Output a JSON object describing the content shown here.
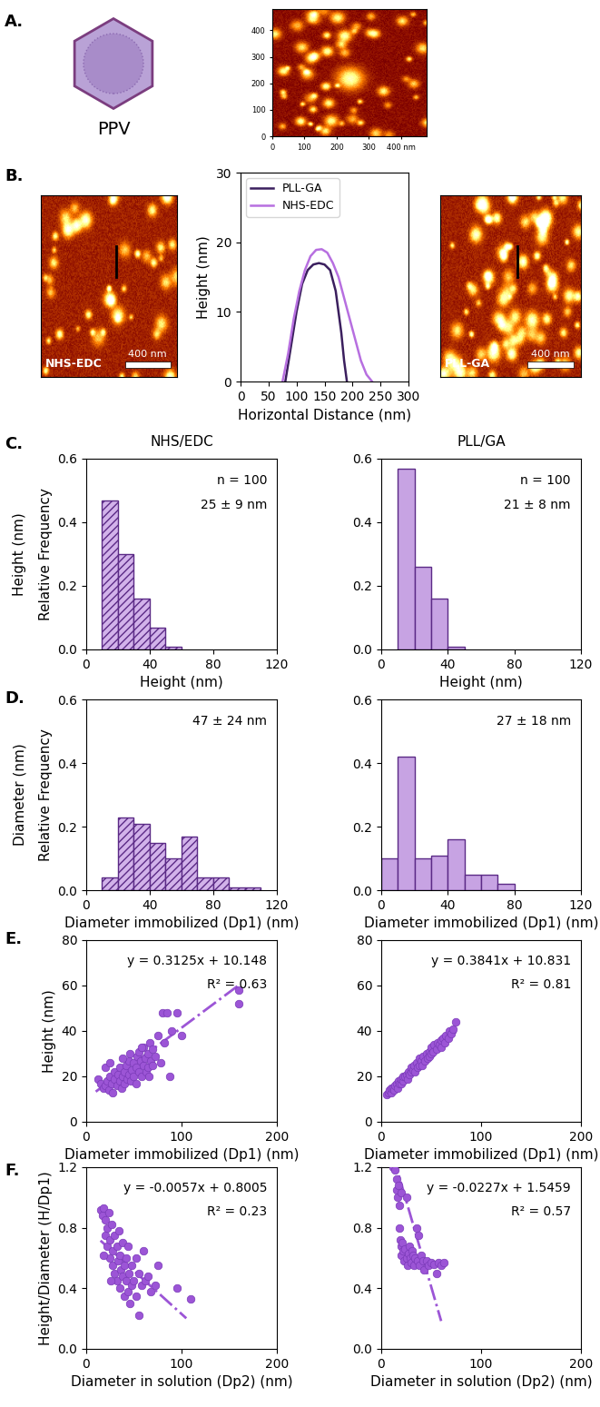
{
  "panel_labels": [
    "A.",
    "B.",
    "C.",
    "D.",
    "E.",
    "F."
  ],
  "diagram": {
    "particle_label": "PPV",
    "afm_3d": {
      "xlim": [
        0,
        480
      ],
      "ylim": [
        0,
        480
      ],
      "xticks": [
        0,
        100,
        200,
        300,
        {
          "value": 400,
          "label": "400 nm"
        }
      ],
      "yticks": [
        0,
        100,
        200,
        300,
        400
      ]
    },
    "afm_images": [
      {
        "label": "NHS-EDC",
        "scale_bar": "400 nm"
      },
      {
        "label": "PLL-GA",
        "scale_bar": "400 nm"
      }
    ]
  },
  "row_labels": [
    "Height (nm)",
    "Diameter (nm)"
  ],
  "chart_data": [
    {
      "type": "line",
      "xlabel": "Horizontal Distance (nm)",
      "ylabel": "Height (nm)",
      "xlim": [
        0,
        300
      ],
      "xticks": [
        0,
        50,
        100,
        150,
        200,
        250,
        300
      ],
      "ylim": [
        0,
        30
      ],
      "yticks": [
        0,
        10,
        20,
        30
      ],
      "legend": "upper left",
      "series": [
        {
          "name": "PLL-GA",
          "color": "#3b1f5e",
          "x": [
            80,
            90,
            100,
            110,
            120,
            130,
            140,
            150,
            160,
            170,
            180,
            185,
            190
          ],
          "values": [
            0,
            5,
            10,
            14,
            16,
            16.8,
            17,
            16.8,
            16,
            13,
            7,
            3,
            0
          ]
        },
        {
          "name": "NHS-EDC",
          "color": "#b76fe0",
          "x": [
            75,
            85,
            95,
            105,
            115,
            125,
            135,
            145,
            155,
            165,
            175,
            185,
            195,
            205,
            215,
            225,
            235
          ],
          "values": [
            0,
            4,
            9,
            13,
            16,
            18,
            18.9,
            19,
            18.5,
            17,
            15,
            12,
            9,
            6,
            3,
            1,
            0
          ]
        }
      ]
    },
    {
      "type": "histogram",
      "title": "NHS/EDC",
      "xlabel": "Height (nm)",
      "ylabel": "Relative Frequency",
      "bins": [
        10,
        20,
        30,
        40,
        50,
        60
      ],
      "counts": [
        0.47,
        0.3,
        0.16,
        0.07,
        0.01
      ],
      "color": "#d2b2ea",
      "annotations": [
        "n = 100",
        "25 ± 9 nm"
      ],
      "xlim": [
        0,
        120
      ],
      "xticks": [
        0,
        40,
        80,
        120
      ],
      "ylim": [
        0,
        0.6
      ],
      "yticks": [
        {
          "value": 0,
          "label": "0.0"
        },
        0.2,
        0.4,
        0.6
      ]
    },
    {
      "type": "histogram",
      "title": "PLL/GA",
      "xlabel": "Height (nm)",
      "bins": [
        10,
        20,
        30,
        40,
        50
      ],
      "counts": [
        0.57,
        0.26,
        0.16,
        0.01
      ],
      "color": "#c7a3e3",
      "annotations": [
        "n = 100",
        "21 ± 8 nm"
      ],
      "xlim": [
        0,
        120
      ],
      "xticks": [
        0,
        40,
        80,
        120
      ],
      "ylim": [
        0,
        0.6
      ],
      "yticks": [
        {
          "value": 0,
          "label": "0.0"
        },
        0.2,
        0.4,
        0.6
      ]
    },
    {
      "type": "histogram",
      "xlabel": "Diameter immobilized (Dp1) (nm)",
      "ylabel": "Relative Frequency",
      "bins": [
        10,
        20,
        30,
        40,
        50,
        60,
        70,
        80,
        90,
        100,
        110
      ],
      "counts": [
        0.04,
        0.23,
        0.21,
        0.15,
        0.1,
        0.17,
        0.04,
        0.04,
        0.01,
        0.01
      ],
      "color": "#d2b2ea",
      "annotations": [
        "47 ± 24 nm"
      ],
      "xlim": [
        0,
        120
      ],
      "xticks": [
        0,
        40,
        80,
        120
      ],
      "ylim": [
        0,
        0.6
      ],
      "yticks": [
        {
          "value": 0,
          "label": "0.0"
        },
        0.2,
        0.4,
        0.6
      ]
    },
    {
      "type": "histogram",
      "xlabel": "Diameter immobilized (Dp1) (nm)",
      "bins": [
        0,
        10,
        20,
        30,
        40,
        50,
        60,
        70,
        80
      ],
      "counts": [
        0.1,
        0.42,
        0.1,
        0.11,
        0.16,
        0.05,
        0.05,
        0.02
      ],
      "color": "#c7a3e3",
      "annotations": [
        "27 ± 18 nm"
      ],
      "xlim": [
        0,
        120
      ],
      "xticks": [
        0,
        40,
        80,
        120
      ],
      "ylim": [
        0,
        0.6
      ],
      "yticks": [
        {
          "value": 0,
          "label": "0.0"
        },
        0.2,
        0.4,
        0.6
      ]
    },
    {
      "type": "scatter",
      "xlabel": "Diameter immobilized (Dp1) (nm)",
      "ylabel": "Height (nm)",
      "color": "#9c55d6",
      "line_style": "dashdot",
      "annotations": [
        "y = 0.3125x + 10.148",
        "R² = 0.63"
      ],
      "fit": {
        "slope": 0.3125,
        "intercept": 10.148,
        "x": [
          10,
          160
        ]
      },
      "x": [
        12,
        15,
        18,
        20,
        22,
        24,
        25,
        27,
        28,
        30,
        30,
        32,
        33,
        35,
        35,
        37,
        38,
        40,
        40,
        42,
        43,
        45,
        45,
        47,
        48,
        50,
        50,
        52,
        53,
        55,
        55,
        57,
        58,
        60,
        60,
        62,
        63,
        65,
        65,
        67,
        68,
        70,
        70,
        72,
        75,
        78,
        80,
        82,
        85,
        88,
        90,
        95,
        100,
        160,
        160,
        20,
        25,
        38,
        46,
        58,
        66,
        52
      ],
      "values": [
        19,
        17,
        15,
        16,
        18,
        14,
        20,
        17,
        13,
        19,
        22,
        16,
        21,
        18,
        24,
        15,
        20,
        22,
        17,
        25,
        19,
        21,
        27,
        18,
        23,
        20,
        26,
        24,
        29,
        22,
        31,
        27,
        20,
        25,
        33,
        28,
        22,
        30,
        24,
        35,
        27,
        32,
        25,
        29,
        38,
        26,
        48,
        35,
        48,
        20,
        40,
        48,
        38,
        52,
        58,
        24,
        26,
        28,
        30,
        33,
        20,
        17
      ],
      "xlim": [
        0,
        200
      ],
      "xticks": [
        0,
        100,
        200
      ],
      "ylim": [
        0,
        80
      ],
      "yticks": [
        0,
        20,
        40,
        60,
        80
      ]
    },
    {
      "type": "scatter",
      "xlabel": "Diameter immobilized (Dp1) (nm)",
      "color": "#9c55d6",
      "line_style": "dashdot",
      "annotations": [
        "y = 0.3841x + 10.831",
        "R² = 0.81"
      ],
      "fit": {
        "slope": 0.3841,
        "intercept": 10.831,
        "x": [
          5,
          75
        ]
      },
      "x": [
        5,
        7,
        8,
        10,
        10,
        12,
        13,
        14,
        15,
        16,
        17,
        18,
        20,
        20,
        22,
        22,
        24,
        25,
        26,
        27,
        28,
        30,
        30,
        32,
        33,
        34,
        35,
        36,
        38,
        38,
        40,
        41,
        42,
        44,
        45,
        46,
        48,
        48,
        50,
        50,
        52,
        53,
        55,
        56,
        58,
        60,
        60,
        62,
        64,
        65,
        67,
        68,
        70,
        72,
        75
      ],
      "values": [
        12,
        13,
        14,
        13,
        15,
        15,
        14,
        16,
        17,
        15,
        18,
        17,
        17,
        19,
        18,
        20,
        20,
        21,
        19,
        22,
        21,
        22,
        24,
        23,
        25,
        22,
        26,
        24,
        25,
        28,
        27,
        25,
        29,
        27,
        30,
        28,
        31,
        29,
        30,
        33,
        31,
        34,
        32,
        35,
        34,
        36,
        33,
        37,
        35,
        38,
        37,
        40,
        39,
        41,
        44
      ],
      "xlim": [
        0,
        200
      ],
      "xticks": [
        0,
        100,
        200
      ],
      "ylim": [
        0,
        80
      ],
      "yticks": [
        0,
        20,
        40,
        60,
        80
      ]
    },
    {
      "type": "scatter",
      "xlabel": "Diameter in solution (Dp2) (nm)",
      "ylabel": "Height/Diameter (H/Dp1)",
      "color": "#9c55d6",
      "line_style": "dashdot",
      "annotations": [
        "y = -0.0057x + 0.8005",
        "R² = 0.23"
      ],
      "fit": {
        "slope": -0.0057,
        "intercept": 0.8005,
        "x": [
          15,
          105
        ]
      },
      "x": [
        15,
        17,
        18,
        20,
        20,
        22,
        22,
        24,
        25,
        25,
        27,
        28,
        28,
        30,
        30,
        32,
        32,
        33,
        35,
        35,
        36,
        38,
        38,
        40,
        40,
        42,
        42,
        44,
        45,
        46,
        48,
        48,
        50,
        52,
        55,
        55,
        58,
        60,
        62,
        65,
        68,
        72,
        75,
        95,
        110,
        18,
        26,
        34,
        44,
        52
      ],
      "values": [
        0.92,
        0.88,
        0.93,
        0.85,
        0.75,
        0.8,
        0.68,
        0.9,
        0.72,
        0.6,
        0.82,
        0.65,
        0.55,
        0.75,
        0.5,
        0.68,
        0.45,
        0.58,
        0.62,
        0.4,
        0.52,
        0.48,
        0.7,
        0.55,
        0.35,
        0.45,
        0.6,
        0.38,
        0.5,
        0.3,
        0.42,
        0.55,
        0.45,
        0.35,
        0.22,
        0.5,
        0.42,
        0.65,
        0.45,
        0.48,
        0.38,
        0.42,
        0.55,
        0.4,
        0.33,
        0.62,
        0.45,
        0.78,
        0.68,
        0.6
      ],
      "xlim": [
        0,
        200
      ],
      "xticks": [
        0,
        100,
        200
      ],
      "ylim": [
        0,
        1.2
      ],
      "yticks": [
        {
          "value": 0,
          "label": "0.0"
        },
        0.4,
        0.8,
        1.2
      ]
    },
    {
      "type": "scatter",
      "xlabel": "Diameter in solution (Dp2) (nm)",
      "color": "#9c55d6",
      "line_style": "dashdot",
      "annotations": [
        "y = -0.0227x + 1.5459",
        "R² = 0.57"
      ],
      "fit": {
        "slope": -0.0227,
        "intercept": 1.5459,
        "x": [
          12,
          60
        ]
      },
      "x": [
        12,
        14,
        15,
        15,
        16,
        17,
        18,
        18,
        19,
        20,
        20,
        21,
        22,
        23,
        24,
        25,
        26,
        27,
        28,
        29,
        30,
        31,
        32,
        33,
        34,
        35,
        36,
        37,
        38,
        40,
        42,
        43,
        45,
        47,
        50,
        53,
        55,
        57,
        60,
        63,
        20,
        25
      ],
      "values": [
        1.2,
        1.18,
        1.12,
        1.05,
        1.0,
        1.08,
        0.95,
        0.8,
        0.72,
        0.68,
        0.62,
        0.7,
        0.65,
        0.58,
        0.66,
        0.6,
        0.55,
        0.63,
        0.68,
        0.6,
        0.57,
        0.65,
        0.62,
        0.55,
        0.6,
        0.8,
        0.58,
        0.75,
        0.55,
        0.62,
        0.58,
        0.52,
        0.58,
        0.55,
        0.57,
        0.56,
        0.5,
        0.57,
        0.55,
        0.57,
        1.03,
        1.0
      ],
      "xlim": [
        0,
        200
      ],
      "xticks": [
        0,
        100,
        200
      ],
      "ylim": [
        0,
        1.2
      ],
      "yticks": [
        {
          "value": 0,
          "label": "0.0"
        },
        0.4,
        0.8,
        1.2
      ]
    }
  ]
}
